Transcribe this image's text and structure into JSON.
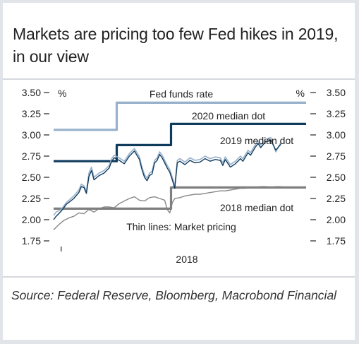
{
  "title": "Markets are pricing too few Fed hikes in 2019, in our view",
  "source": "Source: Federal Reserve, Bloomberg, Macrobond Financial",
  "colors": {
    "panel_bg": "#e1e5ea",
    "border": "#c7ccd3",
    "dot_2020": "#97b0cb",
    "dot_2019": "#0e3a5c",
    "dot_2018": "#7f7f7f",
    "market_2020": "#97b0cb",
    "market_2019": "#0e3a5c",
    "market_2018": "#888888"
  },
  "chart_data": {
    "type": "line",
    "title": "Fed funds rate",
    "ylabel_left": "%",
    "ylabel_right": "%",
    "ylim": [
      1.65,
      3.55
    ],
    "y_ticks": [
      "3.50",
      "3.25",
      "3.00",
      "2.75",
      "2.50",
      "2.25",
      "2.00",
      "1.75"
    ],
    "xlim": [
      0,
      100
    ],
    "x_ticks": [
      {
        "x": 3,
        "label": ""
      }
    ],
    "x_axis_label": "2018",
    "annotations": {
      "dot_2020": "2020 median dot",
      "dot_2019": "2019 median dot",
      "dot_2018": "2018 median dot",
      "market": "Thin lines: Market pricing"
    },
    "series": [
      {
        "name": "2020 median dot",
        "kind": "step",
        "x": [
          0,
          25,
          25,
          100
        ],
        "values": [
          3.06,
          3.06,
          3.38,
          3.38
        ]
      },
      {
        "name": "2019 median dot",
        "kind": "step",
        "x": [
          0,
          25,
          25,
          46.5,
          46.5,
          100
        ],
        "values": [
          2.69,
          2.69,
          2.88,
          2.88,
          3.13,
          3.13
        ]
      },
      {
        "name": "2018 median dot",
        "kind": "step",
        "x": [
          0,
          46.5,
          46.5,
          100
        ],
        "values": [
          2.13,
          2.13,
          2.38,
          2.38
        ]
      },
      {
        "name": "2020 market pricing",
        "kind": "market",
        "x": [
          0,
          1,
          3,
          5,
          8,
          10,
          11,
          12,
          13,
          14,
          15,
          16,
          18,
          20,
          22,
          23,
          24,
          26,
          28,
          30,
          32,
          34,
          35,
          36,
          37,
          38,
          39,
          40,
          41,
          42,
          43,
          44,
          45,
          46,
          47,
          48,
          49,
          50,
          52,
          54,
          56,
          58,
          60,
          62,
          64,
          66,
          67,
          68,
          70,
          72,
          74,
          75,
          76,
          77,
          78,
          80,
          81,
          82,
          84,
          86,
          88,
          90
        ],
        "values": [
          2.05,
          2.09,
          2.12,
          2.2,
          2.28,
          2.35,
          2.42,
          2.4,
          2.34,
          2.55,
          2.62,
          2.5,
          2.55,
          2.58,
          2.64,
          2.72,
          2.76,
          2.73,
          2.69,
          2.78,
          2.84,
          2.74,
          2.62,
          2.53,
          2.49,
          2.55,
          2.57,
          2.7,
          2.73,
          2.8,
          2.76,
          2.7,
          2.64,
          2.59,
          2.5,
          2.4,
          2.7,
          2.72,
          2.68,
          2.73,
          2.7,
          2.71,
          2.75,
          2.72,
          2.74,
          2.73,
          2.67,
          2.74,
          2.65,
          2.69,
          2.75,
          2.72,
          2.77,
          2.82,
          2.79,
          2.89,
          2.93,
          2.88,
          2.95,
          2.97,
          2.8,
          2.91
        ]
      },
      {
        "name": "2019 market pricing",
        "kind": "market",
        "x": [
          0,
          1,
          3,
          5,
          8,
          10,
          11,
          12,
          13,
          14,
          15,
          16,
          18,
          20,
          22,
          23,
          24,
          26,
          28,
          30,
          32,
          34,
          35,
          36,
          37,
          38,
          39,
          40,
          41,
          42,
          43,
          44,
          45,
          46,
          47,
          48,
          49,
          50,
          52,
          54,
          56,
          58,
          60,
          62,
          64,
          66,
          67,
          68,
          70,
          72,
          74,
          75,
          76,
          77,
          78,
          80,
          81,
          82,
          84,
          86,
          88,
          90
        ],
        "values": [
          2.0,
          2.04,
          2.1,
          2.18,
          2.25,
          2.32,
          2.39,
          2.38,
          2.31,
          2.51,
          2.58,
          2.47,
          2.52,
          2.55,
          2.61,
          2.69,
          2.73,
          2.7,
          2.66,
          2.75,
          2.81,
          2.71,
          2.59,
          2.5,
          2.46,
          2.52,
          2.54,
          2.67,
          2.7,
          2.77,
          2.73,
          2.67,
          2.61,
          2.56,
          2.47,
          2.37,
          2.67,
          2.69,
          2.65,
          2.7,
          2.67,
          2.68,
          2.72,
          2.69,
          2.71,
          2.7,
          2.64,
          2.71,
          2.62,
          2.66,
          2.72,
          2.69,
          2.74,
          2.79,
          2.76,
          2.86,
          2.9,
          2.85,
          2.92,
          2.94,
          2.82,
          2.89
        ]
      },
      {
        "name": "2018 market pricing",
        "kind": "market",
        "x": [
          0,
          2,
          4,
          6,
          8,
          10,
          12,
          14,
          16,
          18,
          20,
          22,
          24,
          26,
          28,
          30,
          32,
          34,
          36,
          38,
          40,
          42,
          44,
          45,
          46,
          47,
          48,
          50,
          52,
          54,
          56,
          58,
          60,
          62,
          64,
          66,
          68,
          70,
          72,
          74,
          76,
          78,
          80,
          82,
          84,
          86,
          88,
          90
        ],
        "values": [
          1.88,
          1.94,
          1.99,
          2.02,
          2.04,
          2.08,
          2.07,
          2.12,
          2.09,
          2.13,
          2.15,
          2.15,
          2.14,
          2.19,
          2.22,
          2.25,
          2.27,
          2.23,
          2.22,
          2.26,
          2.27,
          2.25,
          2.23,
          2.12,
          2.08,
          2.2,
          2.25,
          2.26,
          2.28,
          2.29,
          2.3,
          2.3,
          2.31,
          2.32,
          2.33,
          2.34,
          2.34,
          2.35,
          2.36,
          2.37,
          2.37,
          2.38,
          2.38,
          2.39,
          2.39,
          2.38,
          2.39,
          2.39
        ]
      }
    ]
  }
}
